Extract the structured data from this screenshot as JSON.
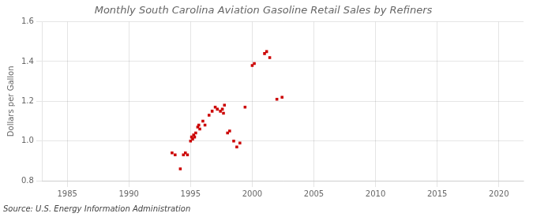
{
  "chart_data": {
    "type": "scatter",
    "title": "Monthly South Carolina Aviation Gasoline Retail Sales by Refiners",
    "ylabel": "Dollars per Gallon",
    "annotation": "Source: U.S. Energy Information Administration",
    "x": [
      1993.5,
      1993.75,
      1994.17,
      1994.42,
      1994.58,
      1994.75,
      1995.0,
      1995.08,
      1995.17,
      1995.25,
      1995.33,
      1995.42,
      1995.58,
      1995.67,
      1995.75,
      1996.0,
      1996.17,
      1996.5,
      1996.75,
      1997.0,
      1997.17,
      1997.42,
      1997.58,
      1997.67,
      1997.75,
      1998.0,
      1998.17,
      1998.5,
      1998.75,
      1999.0,
      1999.42,
      2000.0,
      2000.17,
      2001.0,
      2001.17,
      2001.42,
      2002.0,
      2002.42
    ],
    "values": [
      0.94,
      0.93,
      0.86,
      0.93,
      0.94,
      0.93,
      1.0,
      1.02,
      1.01,
      1.03,
      1.02,
      1.04,
      1.07,
      1.08,
      1.06,
      1.1,
      1.08,
      1.13,
      1.15,
      1.17,
      1.16,
      1.15,
      1.16,
      1.14,
      1.18,
      1.04,
      1.05,
      1.0,
      0.97,
      0.99,
      1.17,
      1.38,
      1.39,
      1.44,
      1.45,
      1.42,
      1.21,
      1.22
    ],
    "color": "#cc0000",
    "marker": "square",
    "xlim": [
      1983,
      2022
    ],
    "ylim": [
      0.8,
      1.6
    ],
    "xticks": [
      1985,
      1990,
      1995,
      2000,
      2005,
      2010,
      2015,
      2020
    ],
    "yticks": [
      0.8,
      {
        "value": 1.0,
        "label": "1.0"
      },
      1.2,
      1.4,
      1.6
    ],
    "grid": true
  }
}
